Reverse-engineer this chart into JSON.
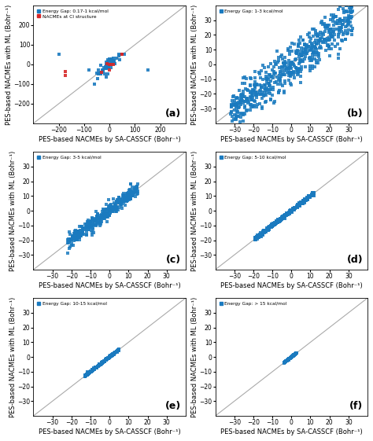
{
  "panels": [
    {
      "label": "(a)",
      "title": "Energy Gap: 0.17-1 kcal/mol",
      "has_ci": true,
      "xlim": [
        -300,
        300
      ],
      "ylim": [
        -300,
        300
      ],
      "xticks": [
        -200,
        -100,
        0,
        100,
        200
      ],
      "yticks": [
        -200,
        -100,
        0,
        100,
        200
      ],
      "seed": 42
    },
    {
      "label": "(b)",
      "title": "Energy Gap: 1-3 kcal/mol",
      "has_ci": false,
      "xlim": [
        -40,
        40
      ],
      "ylim": [
        -40,
        40
      ],
      "xticks": [
        -30,
        -20,
        -10,
        0,
        10,
        20,
        30
      ],
      "yticks": [
        -30,
        -20,
        -10,
        0,
        10,
        20,
        30
      ],
      "seed": 43
    },
    {
      "label": "(c)",
      "title": "Energy Gap: 3-5 kcal/mol",
      "has_ci": false,
      "xlim": [
        -40,
        40
      ],
      "ylim": [
        -40,
        40
      ],
      "xticks": [
        -30,
        -20,
        -10,
        0,
        10,
        20,
        30
      ],
      "yticks": [
        -30,
        -20,
        -10,
        0,
        10,
        20,
        30
      ],
      "seed": 44
    },
    {
      "label": "(d)",
      "title": "Energy Gap: 5-10 kcal/mol",
      "has_ci": false,
      "xlim": [
        -40,
        40
      ],
      "ylim": [
        -40,
        40
      ],
      "xticks": [
        -30,
        -20,
        -10,
        0,
        10,
        20,
        30
      ],
      "yticks": [
        -30,
        -20,
        -10,
        0,
        10,
        20,
        30
      ],
      "seed": 45
    },
    {
      "label": "(e)",
      "title": "Energy Gap: 10-15 kcal/mol",
      "has_ci": false,
      "xlim": [
        -40,
        40
      ],
      "ylim": [
        -40,
        40
      ],
      "xticks": [
        -30,
        -20,
        -10,
        0,
        10,
        20,
        30
      ],
      "yticks": [
        -30,
        -20,
        -10,
        0,
        10,
        20,
        30
      ],
      "seed": 46
    },
    {
      "label": "(f)",
      "title": "Energy Gap: > 15 kcal/mol",
      "has_ci": false,
      "xlim": [
        -40,
        40
      ],
      "ylim": [
        -40,
        40
      ],
      "xticks": [
        -30,
        -20,
        -10,
        0,
        10,
        20,
        30
      ],
      "yticks": [
        -30,
        -20,
        -10,
        0,
        10,
        20,
        30
      ],
      "seed": 47
    }
  ],
  "blue_color": "#1a7abf",
  "red_color": "#d62728",
  "diag_color": "#aaaaaa",
  "xlabel": "PES-based NACMEs by SA-CASSCF (Bohr⁻¹)",
  "ylabel": "PES-based NACMEs with ML (Bohr⁻¹)",
  "background_color": "#ffffff",
  "font_size": 6.0
}
